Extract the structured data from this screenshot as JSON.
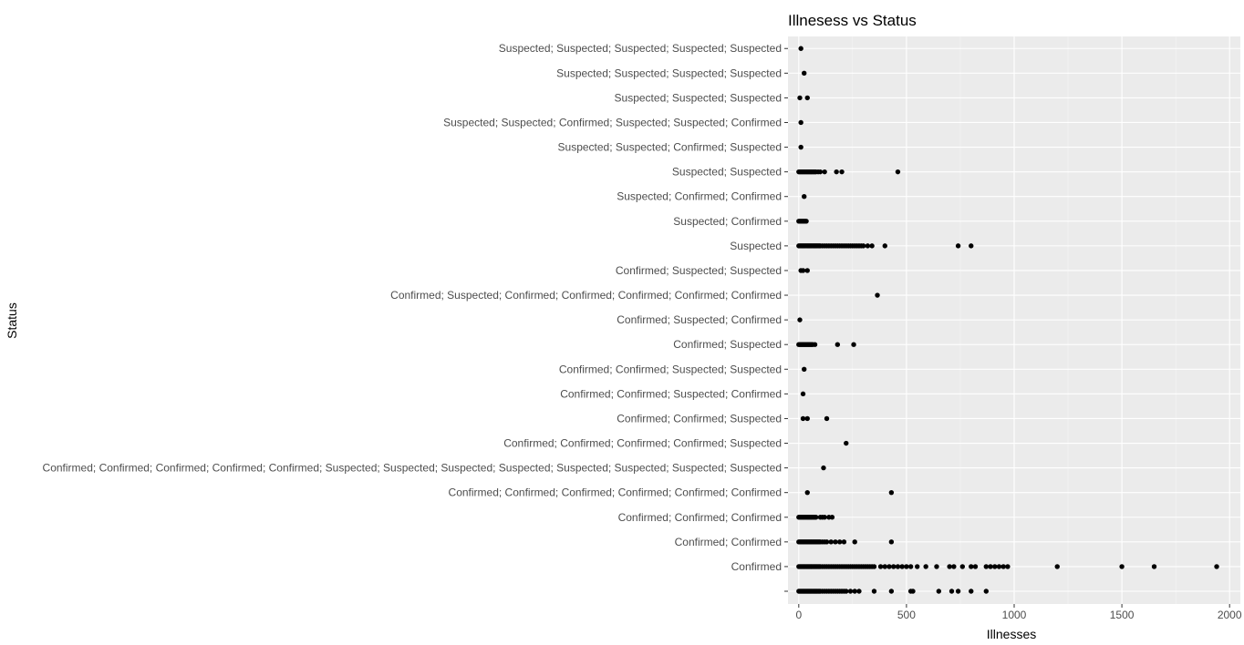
{
  "chart_data": {
    "type": "scatter",
    "title": "Illnesess vs Status",
    "xlabel": "Illnesses",
    "ylabel": "Status",
    "xlim": [
      -50,
      2050
    ],
    "x_ticks": [
      0,
      500,
      1000,
      1500,
      2000
    ],
    "x_tick_labels": [
      "0",
      "500",
      "1000",
      "1500",
      "2000"
    ],
    "grid": true,
    "categories": [
      "",
      "Confirmed",
      "Confirmed; Confirmed",
      "Confirmed; Confirmed; Confirmed",
      "Confirmed; Confirmed; Confirmed; Confirmed; Confirmed; Confirmed",
      "Confirmed; Confirmed; Confirmed; Confirmed; Confirmed; Suspected; Suspected; Suspected; Suspected; Suspected; Suspected; Suspected; Suspected",
      "Confirmed; Confirmed; Confirmed; Confirmed; Suspected",
      "Confirmed; Confirmed; Suspected",
      "Confirmed; Confirmed; Suspected; Confirmed",
      "Confirmed; Confirmed; Suspected; Suspected",
      "Confirmed; Suspected",
      "Confirmed; Suspected; Confirmed",
      "Confirmed; Suspected; Confirmed; Confirmed; Confirmed; Confirmed; Confirmed",
      "Confirmed; Suspected; Suspected",
      "Suspected",
      "Suspected; Confirmed",
      "Suspected; Confirmed; Confirmed",
      "Suspected; Suspected",
      "Suspected; Suspected; Confirmed; Suspected",
      "Suspected; Suspected; Confirmed; Suspected; Suspected; Confirmed",
      "Suspected; Suspected; Suspected",
      "Suspected; Suspected; Suspected; Suspected",
      "Suspected; Suspected; Suspected; Suspected; Suspected"
    ],
    "points": [
      {
        "status": "",
        "x": [
          0,
          5,
          10,
          15,
          20,
          25,
          30,
          35,
          40,
          45,
          50,
          55,
          60,
          65,
          70,
          75,
          80,
          85,
          90,
          95,
          100,
          110,
          120,
          130,
          140,
          150,
          160,
          170,
          180,
          190,
          200,
          210,
          220,
          240,
          260,
          280,
          350,
          430,
          520,
          530,
          650,
          710,
          740,
          800,
          870
        ]
      },
      {
        "status": "Confirmed",
        "x": [
          0,
          5,
          10,
          15,
          20,
          25,
          30,
          35,
          40,
          45,
          50,
          55,
          60,
          65,
          70,
          75,
          80,
          85,
          90,
          95,
          100,
          110,
          120,
          130,
          140,
          150,
          160,
          170,
          180,
          190,
          200,
          210,
          220,
          230,
          240,
          250,
          260,
          270,
          280,
          290,
          300,
          310,
          320,
          330,
          340,
          350,
          380,
          400,
          420,
          440,
          460,
          480,
          500,
          520,
          550,
          590,
          640,
          700,
          720,
          760,
          800,
          820,
          870,
          890,
          910,
          930,
          950,
          970,
          1200,
          1500,
          1650,
          1940
        ]
      },
      {
        "status": "Confirmed; Confirmed",
        "x": [
          0,
          5,
          10,
          15,
          20,
          25,
          30,
          35,
          40,
          45,
          50,
          55,
          60,
          65,
          70,
          75,
          80,
          85,
          90,
          95,
          100,
          110,
          120,
          130,
          150,
          170,
          190,
          210,
          260,
          430
        ]
      },
      {
        "status": "Confirmed; Confirmed; Confirmed",
        "x": [
          0,
          5,
          10,
          15,
          20,
          25,
          30,
          35,
          40,
          45,
          50,
          55,
          60,
          65,
          70,
          75,
          80,
          100,
          110,
          120,
          140,
          155
        ]
      },
      {
        "status": "Confirmed; Confirmed; Confirmed; Confirmed; Confirmed; Confirmed",
        "x": [
          40,
          430
        ]
      },
      {
        "status": "Confirmed; Confirmed; Confirmed; Confirmed; Confirmed; Suspected; Suspected; Suspected; Suspected; Suspected; Suspected; Suspected; Suspected",
        "x": [
          115
        ]
      },
      {
        "status": "Confirmed; Confirmed; Confirmed; Confirmed; Suspected",
        "x": [
          220
        ]
      },
      {
        "status": "Confirmed; Confirmed; Suspected",
        "x": [
          20,
          40,
          130
        ]
      },
      {
        "status": "Confirmed; Confirmed; Suspected; Confirmed",
        "x": [
          20
        ]
      },
      {
        "status": "Confirmed; Confirmed; Suspected; Suspected",
        "x": [
          25
        ]
      },
      {
        "status": "Confirmed; Suspected",
        "x": [
          0,
          5,
          10,
          15,
          20,
          25,
          30,
          35,
          40,
          45,
          50,
          55,
          60,
          65,
          75,
          180,
          255
        ]
      },
      {
        "status": "Confirmed; Suspected; Confirmed",
        "x": [
          5
        ]
      },
      {
        "status": "Confirmed; Suspected; Confirmed; Confirmed; Confirmed; Confirmed; Confirmed",
        "x": [
          365
        ]
      },
      {
        "status": "Confirmed; Suspected; Suspected",
        "x": [
          10,
          20,
          40
        ]
      },
      {
        "status": "Suspected",
        "x": [
          0,
          5,
          10,
          15,
          20,
          25,
          30,
          35,
          40,
          45,
          50,
          55,
          60,
          65,
          70,
          75,
          80,
          85,
          90,
          95,
          100,
          110,
          120,
          130,
          140,
          150,
          160,
          170,
          180,
          190,
          200,
          210,
          220,
          230,
          240,
          250,
          260,
          270,
          280,
          290,
          300,
          320,
          340,
          400,
          740,
          800
        ]
      },
      {
        "status": "Suspected; Confirmed",
        "x": [
          0,
          5,
          10,
          15,
          20,
          25,
          30,
          35
        ]
      },
      {
        "status": "Suspected; Confirmed; Confirmed",
        "x": [
          25
        ]
      },
      {
        "status": "Suspected; Suspected",
        "x": [
          0,
          5,
          10,
          15,
          20,
          25,
          30,
          35,
          40,
          45,
          50,
          55,
          60,
          65,
          70,
          75,
          80,
          90,
          100,
          120,
          175,
          200,
          460
        ]
      },
      {
        "status": "Suspected; Suspected; Confirmed; Suspected",
        "x": [
          10
        ]
      },
      {
        "status": "Suspected; Suspected; Confirmed; Suspected; Suspected; Confirmed",
        "x": [
          10
        ]
      },
      {
        "status": "Suspected; Suspected; Suspected",
        "x": [
          5,
          40
        ]
      },
      {
        "status": "Suspected; Suspected; Suspected; Suspected",
        "x": [
          25
        ]
      },
      {
        "status": "Suspected; Suspected; Suspected; Suspected; Suspected",
        "x": [
          10
        ]
      }
    ]
  }
}
